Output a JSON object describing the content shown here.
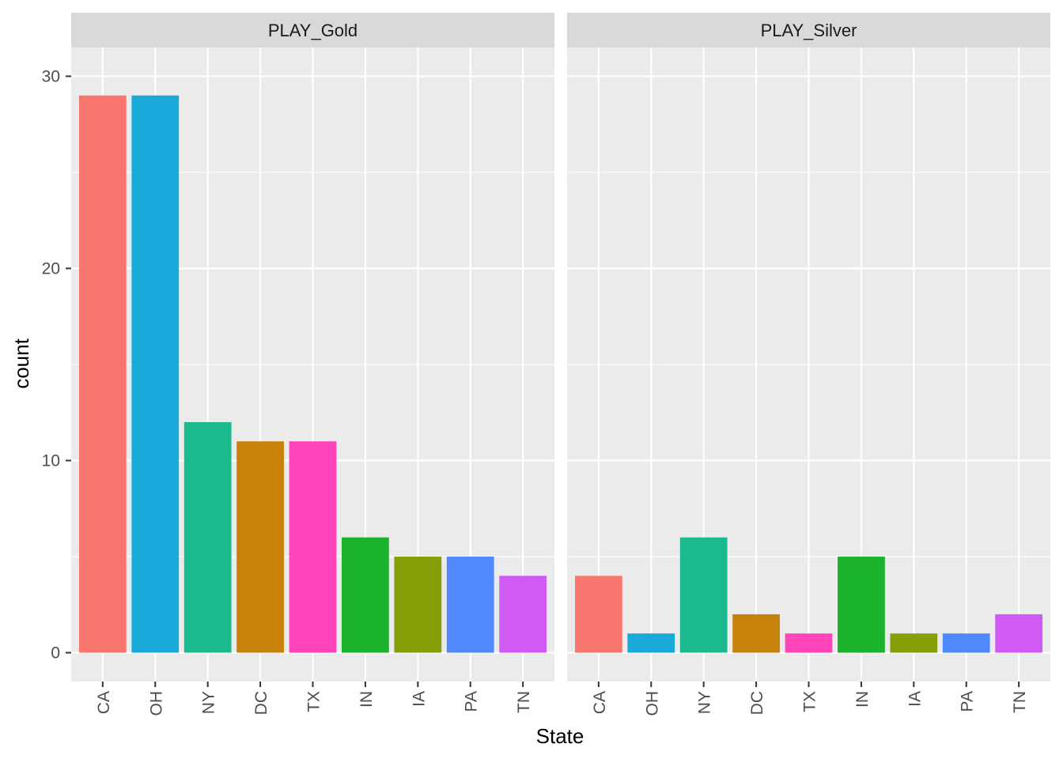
{
  "chart_data": {
    "type": "bar",
    "xlabel": "State",
    "ylabel": "count",
    "ylim": [
      -1.5,
      31.5
    ],
    "yticks": [
      0,
      10,
      20,
      30
    ],
    "grid": true,
    "legend": "none",
    "categories": [
      "CA",
      "OH",
      "NY",
      "DC",
      "TX",
      "IN",
      "IA",
      "PA",
      "TN"
    ],
    "colors": [
      "#F8766D",
      "#19A9DB",
      "#1ABA8E",
      "#C98209",
      "#FF45B9",
      "#1BB22C",
      "#84A006",
      "#5088FF",
      "#CF5AF6"
    ],
    "facets": [
      {
        "label": "PLAY_Gold",
        "values": [
          29,
          29,
          12,
          11,
          11,
          6,
          5,
          5,
          4
        ]
      },
      {
        "label": "PLAY_Silver",
        "values": [
          4,
          1,
          6,
          2,
          1,
          5,
          1,
          1,
          2
        ]
      }
    ]
  }
}
